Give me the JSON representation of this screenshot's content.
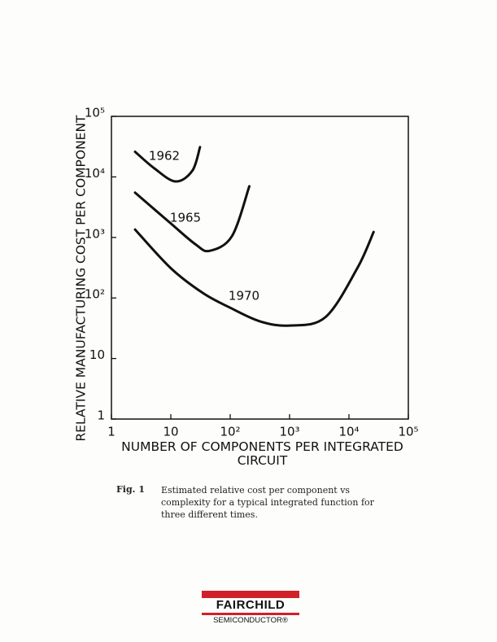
{
  "chart_data": {
    "type": "line",
    "ylabel": "RELATIVE MANUFACTURING COST PER COMPONENT",
    "xlabel": "NUMBER OF COMPONENTS PER INTEGRATED CIRCUIT",
    "xscale": "log",
    "yscale": "log",
    "xlim": [
      1,
      100000
    ],
    "ylim": [
      1,
      100000
    ],
    "xticks": [
      1,
      10,
      {
        "value": 100,
        "label": "10²"
      },
      {
        "value": 1000,
        "label": "10³"
      },
      {
        "value": 10000,
        "label": "10⁴"
      },
      {
        "value": 100000,
        "label": "10⁵"
      }
    ],
    "yticks": [
      1,
      10,
      {
        "value": 100,
        "label": "10²"
      },
      {
        "value": 1000,
        "label": "10³"
      },
      {
        "value": 10000,
        "label": "10⁴"
      },
      {
        "value": 100000,
        "label": "10⁵"
      }
    ],
    "series": [
      {
        "name": "1962",
        "color": "#111111",
        "x": [
          2.5,
          5.3,
          12,
          23,
          31
        ],
        "values": [
          26000,
          13800,
          8400,
          12600,
          31000
        ]
      },
      {
        "name": "1965",
        "color": "#111111",
        "x": [
          2.5,
          10,
          26,
          45,
          107,
          210
        ],
        "values": [
          5500,
          1700,
          770,
          600,
          1050,
          7000
        ]
      },
      {
        "name": "1970",
        "color": "#111111",
        "x": [
          2.5,
          10,
          35,
          100,
          320,
          1000,
          4000,
          13800,
          26000
        ],
        "values": [
          1350,
          310,
          120,
          69,
          41,
          35,
          48,
          310,
          1230
        ]
      }
    ]
  },
  "caption": {
    "label": "Fig. 1",
    "text": "Estimated relative cost per component vs complexity for a typical integrated function for three different times."
  },
  "logo": {
    "name": "FAIRCHILD",
    "sub": "SEMICONDUCTOR®"
  }
}
